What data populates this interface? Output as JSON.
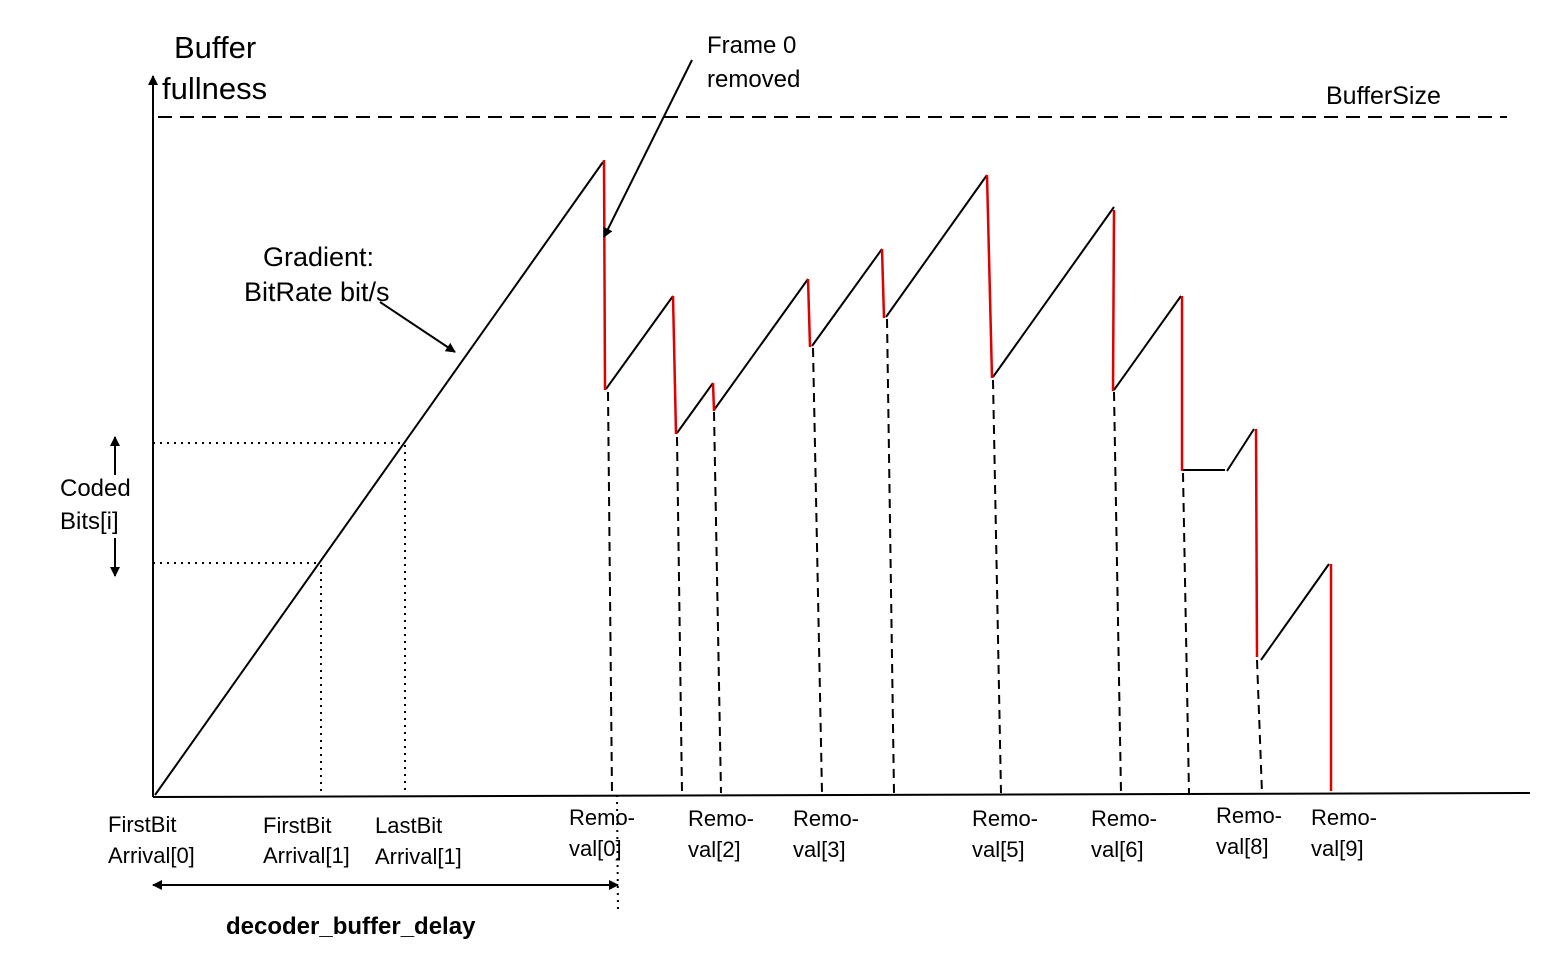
{
  "diagram": {
    "y_axis_label_line1": "Buffer",
    "y_axis_label_line2": "fullness",
    "buffer_size_label": "BufferSize",
    "frame0_label_line1": "Frame 0",
    "frame0_label_line2": "removed",
    "gradient_label_line1": "Gradient:",
    "gradient_label_line2": "BitRate bit/s",
    "coded_bits_line1": "Coded",
    "coded_bits_line2": "Bits[i]",
    "delay_label": "decoder_buffer_delay",
    "x_labels": [
      {
        "line1": "FirstBit",
        "line2": "Arrival[0]"
      },
      {
        "line1": "FirstBit",
        "line2": "Arrival[1]"
      },
      {
        "line1": "LastBit",
        "line2": "Arrival[1]"
      },
      {
        "line1": "Remo-",
        "line2": "val[0]"
      },
      {
        "line1": "Remo-",
        "line2": "val[2]"
      },
      {
        "line1": "Remo-",
        "line2": "val[3]"
      },
      {
        "line1": "Remo-",
        "line2": "val[5]"
      },
      {
        "line1": "Remo-",
        "line2": "val[6]"
      },
      {
        "line1": "Remo-",
        "line2": "val[8]"
      },
      {
        "line1": "Remo-",
        "line2": "val[9]"
      }
    ],
    "colors": {
      "line": "#000000",
      "removal": "#e00000"
    }
  }
}
